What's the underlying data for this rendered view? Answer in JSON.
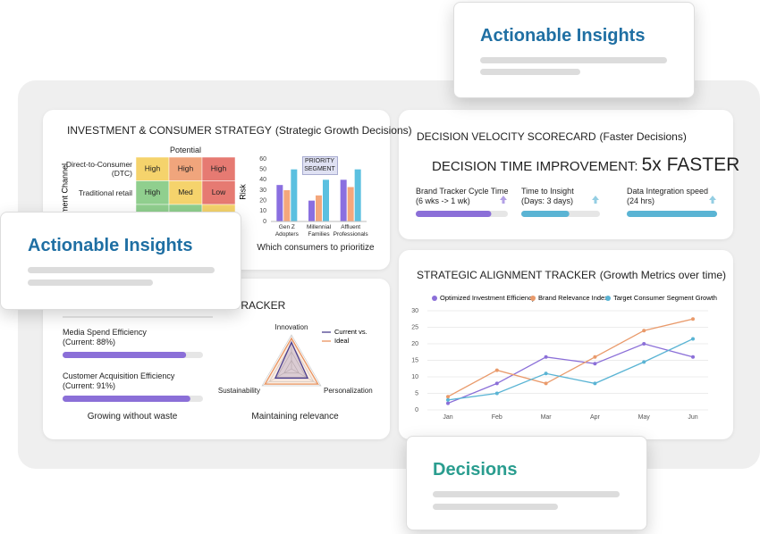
{
  "overlays": [
    {
      "title": "Actionable Insights"
    },
    {
      "title": "Actionable Insights"
    },
    {
      "title": "Decisions"
    }
  ],
  "chart_data": [
    {
      "type": "heatmap",
      "title": "INVESTMENT & CONSUMER STRATEGY",
      "subtitle": "(Strategic Growth Decisions)",
      "x_label": "Potential",
      "y_label": "Investment Channel",
      "rows": [
        "Direct-to-Consumer (DTC)",
        "Traditional retail",
        null
      ],
      "cells": [
        [
          "High",
          "High",
          "High"
        ],
        [
          "High",
          "Med",
          "Low"
        ],
        [
          null,
          null,
          null
        ]
      ],
      "cell_colors": [
        [
          "#f5d36c",
          "#f0a57c",
          "#e67a72"
        ],
        [
          "#90cf8e",
          "#f5d36c",
          "#e67a72"
        ],
        [
          "#90cf8e",
          "#90cf8e",
          "#f5d36c"
        ]
      ]
    },
    {
      "type": "bar",
      "y_label": "Risk",
      "categories": [
        "Gen Z Adopters",
        "Millennial Families",
        "Affluent Professionals"
      ],
      "series": [
        {
          "color": "#8a6fe0",
          "values": [
            35,
            20,
            40
          ]
        },
        {
          "color": "#f4a77c",
          "values": [
            30,
            25,
            33
          ]
        },
        {
          "color": "#5bc0e0",
          "values": [
            50,
            40,
            50
          ]
        }
      ],
      "ylim": [
        0,
        60
      ],
      "yticks": [
        0,
        10,
        20,
        30,
        40,
        50,
        60
      ],
      "annotation": "PRIORITY SEGMENT",
      "caption": "Which consumers to prioritize"
    },
    {
      "type": "progress",
      "title": "DECISION VELOCITY SCORECARD",
      "subtitle": "(Faster Decisions)",
      "headline": "DECISION TIME IMPROVEMENT:",
      "highlight": "5x FASTER",
      "xlim": [
        0,
        100
      ],
      "items": [
        {
          "label": "Brand Tracker Cycle Time",
          "detail": "(6 wks -> 1 wk)",
          "value": 82,
          "color": "#8b6fd8"
        },
        {
          "label": "Time to Insight",
          "detail": "(Days: 3 days)",
          "value": 61,
          "color": "#5ab4d4"
        },
        {
          "label": "Data Integration speed",
          "detail": "(24 hrs)",
          "value": 100,
          "color": "#5ab4d4"
        }
      ]
    },
    {
      "type": "progress",
      "title": "TRACKER",
      "xlim": [
        0,
        100
      ],
      "items": [
        {
          "label": "Media Spend Efficiency",
          "detail": "(Current: 88%)",
          "value": 88,
          "color": "#8b6fd8"
        },
        {
          "label": "Customer Acquisition Efficiency",
          "detail": "(Current: 91%)",
          "value": 91,
          "color": "#8b6fd8"
        }
      ],
      "caption": "Growing without waste"
    },
    {
      "type": "radar",
      "axes": [
        "Innovation",
        "Personalization",
        "Sustainability"
      ],
      "rlim": [
        0,
        100
      ],
      "series": [
        {
          "name": "Current vs.",
          "color": "#4b3f8f",
          "values": [
            78,
            55,
            55
          ]
        },
        {
          "name": "Ideal",
          "color": "#e9935f",
          "values": [
            90,
            90,
            90
          ]
        }
      ],
      "caption": "Maintaining relevance"
    },
    {
      "type": "line",
      "title": "STRATEGIC ALIGNMENT TRACKER",
      "subtitle": "(Growth Metrics over time)",
      "categories": [
        "Jan",
        "Feb",
        "Mar",
        "Apr",
        "May",
        "Jun"
      ],
      "series": [
        {
          "name": "Optimized Investment Efficiency",
          "color": "#8b6fd8",
          "values": [
            2,
            8,
            16,
            14,
            20,
            16
          ]
        },
        {
          "name": "Brand Relevance Index",
          "color": "#e99a6b",
          "values": [
            4,
            12,
            8,
            16,
            24,
            27.5
          ]
        },
        {
          "name": "Target Consumer Segment Growth",
          "color": "#5ab4d4",
          "values": [
            3,
            5,
            11,
            8,
            14.5,
            21.5
          ]
        }
      ],
      "ylim": [
        0,
        30
      ],
      "yticks": [
        0,
        5,
        10,
        15,
        20,
        25,
        30
      ],
      "grid": true
    }
  ]
}
